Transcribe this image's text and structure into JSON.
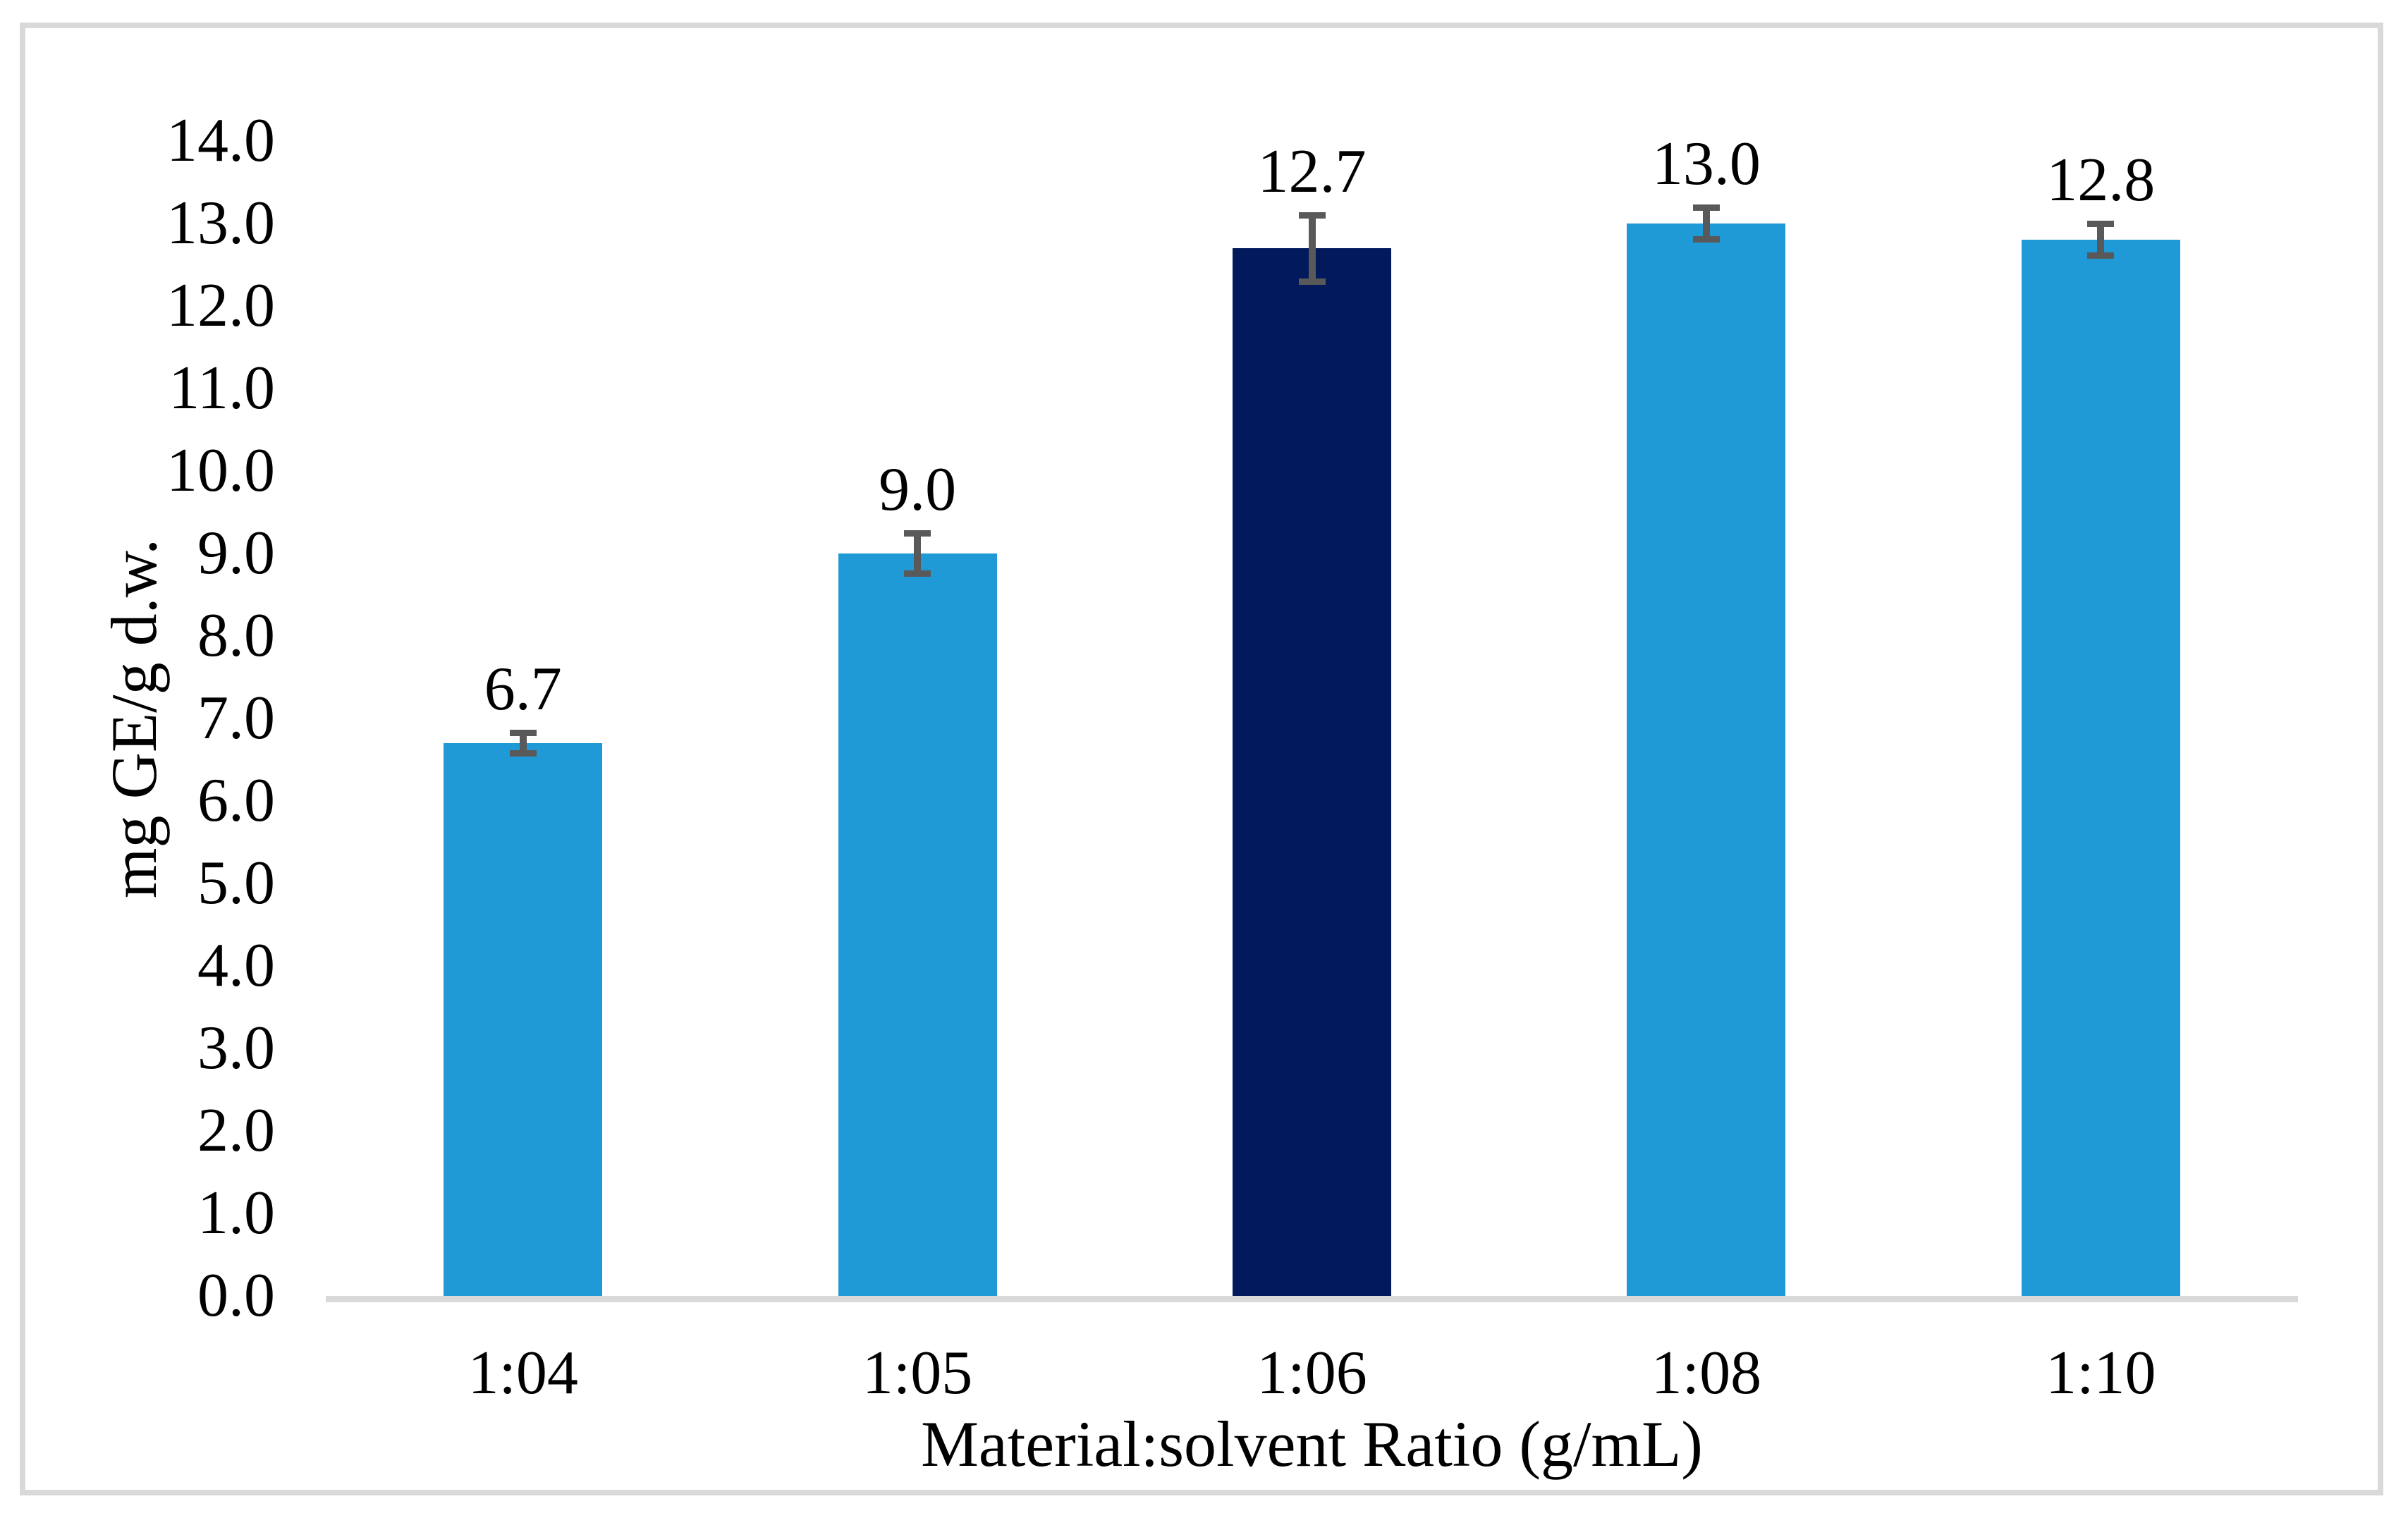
{
  "figure": {
    "kind": "bar-chart-figure",
    "frame_color": "#D9D9D9",
    "background": "#FFFFFF"
  },
  "chart_data": {
    "type": "bar",
    "title": "",
    "categories": [
      "1:04",
      "1:05",
      "1:06",
      "1:08",
      "1:10"
    ],
    "values": [
      6.7,
      9.0,
      12.7,
      13.0,
      12.8
    ],
    "errors": [
      0.16,
      0.28,
      0.44,
      0.23,
      0.23
    ],
    "data_labels": [
      "6.7",
      "9.0",
      "12.7",
      "13.0",
      "12.8"
    ],
    "highlight_index": 2,
    "xlabel": "Material:solvent Ratio (g/mL)",
    "ylabel": "mg GE/g d.w.",
    "ylim": [
      0,
      14
    ],
    "y_tick_labels": [
      "0.0",
      "1.0",
      "2.0",
      "3.0",
      "4.0",
      "5.0",
      "6.0",
      "7.0",
      "8.0",
      "9.0",
      "10.0",
      "11.0",
      "12.0",
      "13.0",
      "14.0"
    ],
    "grid": "off",
    "legend": "none",
    "error_bar_style": "plus-minus-caps",
    "colors": {
      "bar": "#1F9AD6",
      "bar_highlight": "#02195C",
      "error_bar": "#595959",
      "axis_line": "#D9D9D9",
      "text": "#000000"
    }
  }
}
